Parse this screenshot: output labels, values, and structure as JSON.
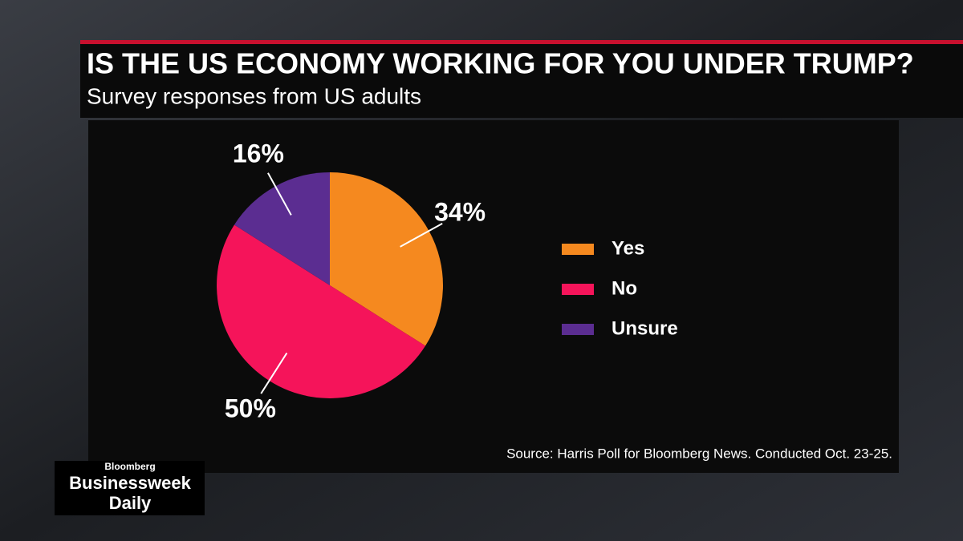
{
  "chart_data": {
    "type": "pie",
    "title": "IS THE US ECONOMY WORKING FOR YOU UNDER TRUMP?",
    "subtitle": "Survey responses from US adults",
    "categories": [
      "Yes",
      "No",
      "Unsure"
    ],
    "values": [
      34,
      50,
      16
    ],
    "value_labels": [
      "34%",
      "50%",
      "16%"
    ],
    "colors": [
      "#f5891f",
      "#f5145a",
      "#5b2d91"
    ],
    "legend": "right",
    "source": "Source: Harris Poll for Bloomberg News. Conducted Oct. 23-25."
  },
  "branding": {
    "publisher": "Bloomberg",
    "show": [
      "Businessweek",
      "Daily"
    ]
  }
}
